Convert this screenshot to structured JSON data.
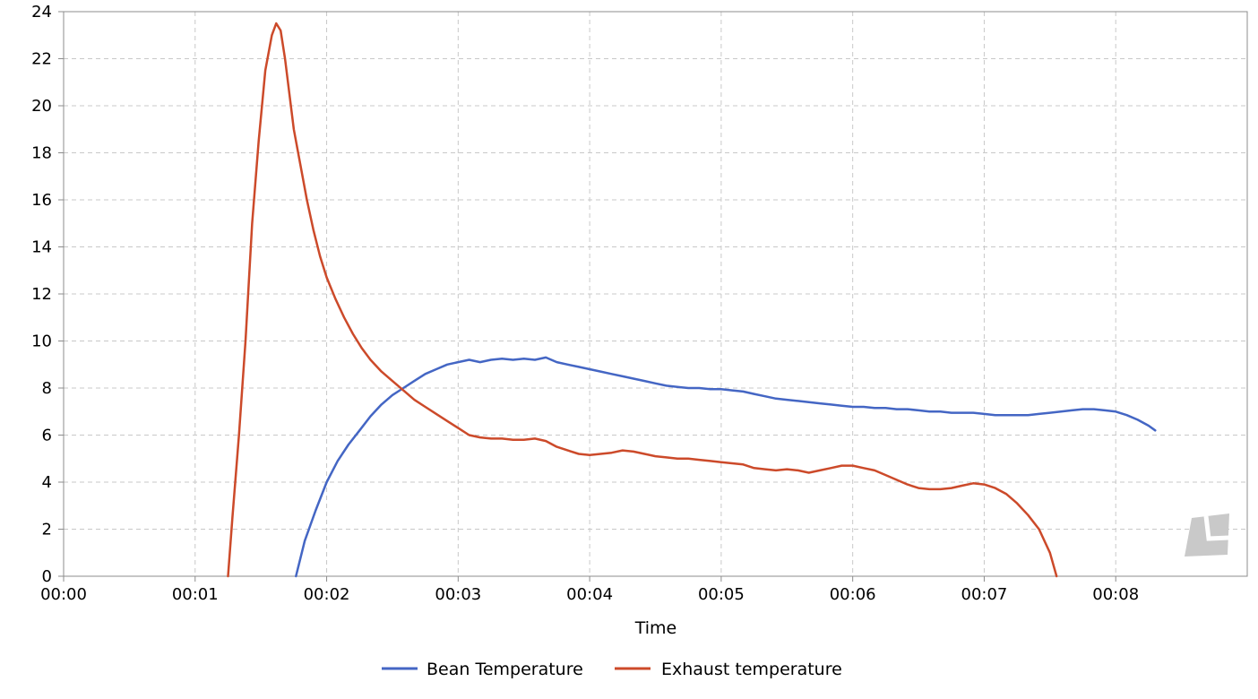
{
  "chart_data": {
    "type": "line",
    "title": "",
    "xlabel": "Time",
    "ylabel": "",
    "xlim_seconds": [
      0,
      540
    ],
    "ylim": [
      0,
      24
    ],
    "x_ticks": [
      {
        "value": 0,
        "label": "00:00"
      },
      {
        "value": 60,
        "label": "00:01"
      },
      {
        "value": 120,
        "label": "00:02"
      },
      {
        "value": 180,
        "label": "00:03"
      },
      {
        "value": 240,
        "label": "00:04"
      },
      {
        "value": 300,
        "label": "00:05"
      },
      {
        "value": 360,
        "label": "00:06"
      },
      {
        "value": 420,
        "label": "00:07"
      },
      {
        "value": 480,
        "label": "00:08"
      }
    ],
    "y_ticks": [
      0,
      2,
      4,
      6,
      8,
      10,
      12,
      14,
      16,
      18,
      20,
      22,
      24
    ],
    "grid": true,
    "legend_position": "bottom-center",
    "series": [
      {
        "name": "Bean Temperature",
        "color": "#4466c4",
        "points": [
          [
            106,
            0
          ],
          [
            110,
            1.5
          ],
          [
            115,
            2.8
          ],
          [
            120,
            4.0
          ],
          [
            125,
            4.9
          ],
          [
            130,
            5.6
          ],
          [
            135,
            6.2
          ],
          [
            140,
            6.8
          ],
          [
            145,
            7.3
          ],
          [
            150,
            7.7
          ],
          [
            155,
            8.0
          ],
          [
            160,
            8.3
          ],
          [
            165,
            8.6
          ],
          [
            170,
            8.8
          ],
          [
            175,
            9.0
          ],
          [
            180,
            9.1
          ],
          [
            185,
            9.2
          ],
          [
            190,
            9.1
          ],
          [
            195,
            9.2
          ],
          [
            200,
            9.25
          ],
          [
            205,
            9.2
          ],
          [
            210,
            9.25
          ],
          [
            215,
            9.2
          ],
          [
            220,
            9.3
          ],
          [
            225,
            9.1
          ],
          [
            230,
            9.0
          ],
          [
            235,
            8.9
          ],
          [
            240,
            8.8
          ],
          [
            245,
            8.7
          ],
          [
            250,
            8.6
          ],
          [
            255,
            8.5
          ],
          [
            260,
            8.4
          ],
          [
            265,
            8.3
          ],
          [
            270,
            8.2
          ],
          [
            275,
            8.1
          ],
          [
            280,
            8.05
          ],
          [
            285,
            8.0
          ],
          [
            290,
            8.0
          ],
          [
            295,
            7.95
          ],
          [
            300,
            7.95
          ],
          [
            305,
            7.9
          ],
          [
            310,
            7.85
          ],
          [
            315,
            7.75
          ],
          [
            320,
            7.65
          ],
          [
            325,
            7.55
          ],
          [
            330,
            7.5
          ],
          [
            335,
            7.45
          ],
          [
            340,
            7.4
          ],
          [
            345,
            7.35
          ],
          [
            350,
            7.3
          ],
          [
            355,
            7.25
          ],
          [
            360,
            7.2
          ],
          [
            365,
            7.2
          ],
          [
            370,
            7.15
          ],
          [
            375,
            7.15
          ],
          [
            380,
            7.1
          ],
          [
            385,
            7.1
          ],
          [
            390,
            7.05
          ],
          [
            395,
            7.0
          ],
          [
            400,
            7.0
          ],
          [
            405,
            6.95
          ],
          [
            410,
            6.95
          ],
          [
            415,
            6.95
          ],
          [
            420,
            6.9
          ],
          [
            425,
            6.85
          ],
          [
            430,
            6.85
          ],
          [
            435,
            6.85
          ],
          [
            440,
            6.85
          ],
          [
            445,
            6.9
          ],
          [
            450,
            6.95
          ],
          [
            455,
            7.0
          ],
          [
            460,
            7.05
          ],
          [
            465,
            7.1
          ],
          [
            470,
            7.1
          ],
          [
            475,
            7.05
          ],
          [
            480,
            7.0
          ],
          [
            485,
            6.85
          ],
          [
            490,
            6.65
          ],
          [
            495,
            6.4
          ],
          [
            498,
            6.2
          ]
        ]
      },
      {
        "name": "Exhaust temperature",
        "color": "#cc4a2a",
        "points": [
          [
            75,
            0
          ],
          [
            77,
            2.5
          ],
          [
            80,
            6.0
          ],
          [
            83,
            10.0
          ],
          [
            86,
            15.0
          ],
          [
            89,
            18.5
          ],
          [
            92,
            21.5
          ],
          [
            95,
            23.0
          ],
          [
            97,
            23.5
          ],
          [
            99,
            23.2
          ],
          [
            101,
            22.0
          ],
          [
            103,
            20.5
          ],
          [
            105,
            19.0
          ],
          [
            108,
            17.5
          ],
          [
            111,
            16.0
          ],
          [
            114,
            14.7
          ],
          [
            117,
            13.6
          ],
          [
            120,
            12.7
          ],
          [
            124,
            11.8
          ],
          [
            128,
            11.0
          ],
          [
            132,
            10.3
          ],
          [
            136,
            9.7
          ],
          [
            140,
            9.2
          ],
          [
            145,
            8.7
          ],
          [
            150,
            8.3
          ],
          [
            155,
            7.9
          ],
          [
            160,
            7.5
          ],
          [
            165,
            7.2
          ],
          [
            170,
            6.9
          ],
          [
            175,
            6.6
          ],
          [
            180,
            6.3
          ],
          [
            185,
            6.0
          ],
          [
            190,
            5.9
          ],
          [
            195,
            5.85
          ],
          [
            200,
            5.85
          ],
          [
            205,
            5.8
          ],
          [
            210,
            5.8
          ],
          [
            215,
            5.85
          ],
          [
            220,
            5.75
          ],
          [
            225,
            5.5
          ],
          [
            230,
            5.35
          ],
          [
            235,
            5.2
          ],
          [
            240,
            5.15
          ],
          [
            245,
            5.2
          ],
          [
            250,
            5.25
          ],
          [
            255,
            5.35
          ],
          [
            260,
            5.3
          ],
          [
            265,
            5.2
          ],
          [
            270,
            5.1
          ],
          [
            275,
            5.05
          ],
          [
            280,
            5.0
          ],
          [
            285,
            5.0
          ],
          [
            290,
            4.95
          ],
          [
            295,
            4.9
          ],
          [
            300,
            4.85
          ],
          [
            305,
            4.8
          ],
          [
            310,
            4.75
          ],
          [
            315,
            4.6
          ],
          [
            320,
            4.55
          ],
          [
            325,
            4.5
          ],
          [
            330,
            4.55
          ],
          [
            335,
            4.5
          ],
          [
            340,
            4.4
          ],
          [
            345,
            4.5
          ],
          [
            350,
            4.6
          ],
          [
            355,
            4.7
          ],
          [
            360,
            4.7
          ],
          [
            365,
            4.6
          ],
          [
            370,
            4.5
          ],
          [
            375,
            4.3
          ],
          [
            380,
            4.1
          ],
          [
            385,
            3.9
          ],
          [
            390,
            3.75
          ],
          [
            395,
            3.7
          ],
          [
            400,
            3.7
          ],
          [
            405,
            3.75
          ],
          [
            410,
            3.85
          ],
          [
            415,
            3.95
          ],
          [
            420,
            3.9
          ],
          [
            425,
            3.75
          ],
          [
            430,
            3.5
          ],
          [
            435,
            3.1
          ],
          [
            440,
            2.6
          ],
          [
            445,
            2.0
          ],
          [
            450,
            1.0
          ],
          [
            453,
            0
          ]
        ]
      }
    ]
  }
}
